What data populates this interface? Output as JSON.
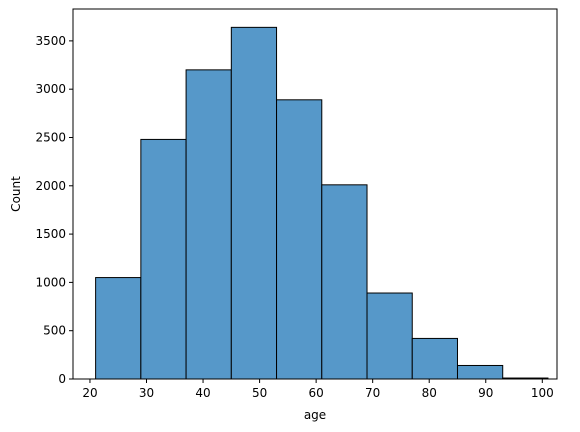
{
  "chart_data": {
    "type": "histogram",
    "x_label": "age",
    "y_label": "Count",
    "bins": [
      21,
      29,
      37,
      45,
      53,
      61,
      69,
      77,
      85,
      93,
      101
    ],
    "counts": [
      1050,
      2480,
      3200,
      3640,
      2890,
      2010,
      890,
      420,
      140,
      10
    ],
    "color": "#5698c9",
    "xlim": [
      17,
      102.6
    ],
    "xticks": [
      20,
      30,
      40,
      50,
      60,
      70,
      80,
      90,
      100
    ],
    "ylim": [
      0,
      3830
    ],
    "yticks": [
      0,
      500,
      1000,
      1500,
      2000,
      2500,
      3000,
      3500
    ]
  }
}
